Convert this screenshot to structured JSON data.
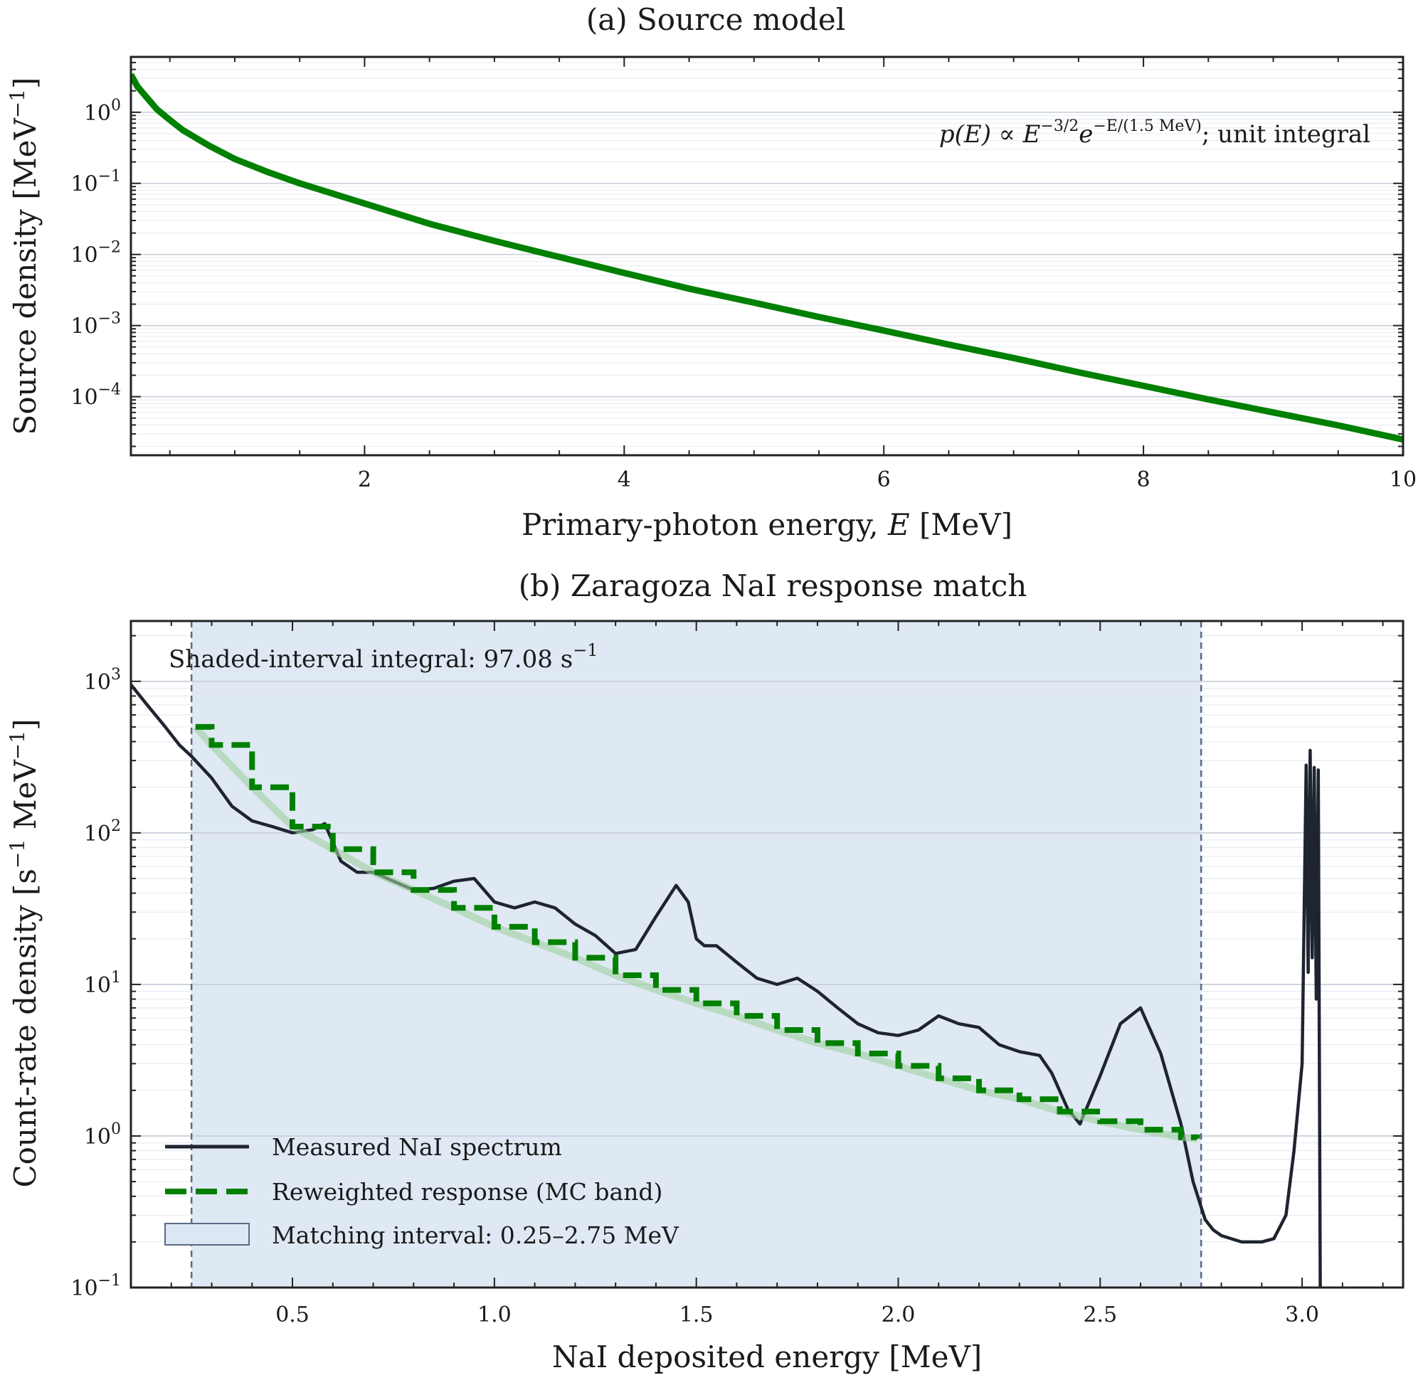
{
  "chart_data": [
    {
      "type": "line",
      "title": "(a) Source model",
      "xlabel_text": "Primary-photon energy, ",
      "xlabel_var": "E",
      "xlabel_unit": " [MeV]",
      "ylabel_base": "Source density [MeV",
      "ylabel_sup": "−1",
      "ylabel_close": "]",
      "yscale": "log",
      "xlim": [
        0.2,
        10
      ],
      "ylim": [
        1.5e-05,
        6
      ],
      "xticks": [
        2,
        4,
        6,
        8,
        10
      ],
      "yticks": [
        {
          "base": "10",
          "exp": "0"
        },
        {
          "base": "10",
          "exp": "−1"
        },
        {
          "base": "10",
          "exp": "−2"
        },
        {
          "base": "10",
          "exp": "−3"
        },
        {
          "base": "10",
          "exp": "−4"
        }
      ],
      "ytick_values": [
        1,
        0.1,
        0.01,
        0.001,
        0.0001
      ],
      "annotation": {
        "lhs": "p(E) ∝ E",
        "exp1": "−3/2",
        "mid": "e",
        "exp2": "−E/(1.5 MeV)",
        "rhs": "; unit integral"
      },
      "series": [
        {
          "color": "#008000",
          "x": [
            0.2,
            0.25,
            0.3,
            0.4,
            0.5,
            0.6,
            0.8,
            1.0,
            1.25,
            1.5,
            2.0,
            2.5,
            3.0,
            3.5,
            4.0,
            4.5,
            5.0,
            5.5,
            6.0,
            6.5,
            7.0,
            7.5,
            8.0,
            8.5,
            9.0,
            9.5,
            10.0
          ],
          "y": [
            3.4,
            2.3,
            1.8,
            1.1,
            0.78,
            0.56,
            0.34,
            0.22,
            0.145,
            0.1,
            0.052,
            0.027,
            0.0155,
            0.0092,
            0.0055,
            0.0033,
            0.0021,
            0.00132,
            0.00085,
            0.00054,
            0.00035,
            0.00022,
            0.000142,
            9.15e-05,
            6e-05,
            3.95e-05,
            2.5e-05
          ]
        }
      ]
    },
    {
      "type": "line",
      "title": "(b) Zaragoza NaI response match",
      "xlabel": "NaI deposited energy [MeV]",
      "ylabel_base": "Count-rate density [s",
      "ylabel_sup1": "−1",
      "ylabel_mid": " MeV",
      "ylabel_sup2": "−1",
      "ylabel_close": "]",
      "yscale": "log",
      "xlim": [
        0.1,
        3.25
      ],
      "ylim": [
        0.1,
        2500
      ],
      "xticks": [
        "0.5",
        "1.0",
        "1.5",
        "2.0",
        "2.5",
        "3.0"
      ],
      "xtick_values": [
        0.5,
        1.0,
        1.5,
        2.0,
        2.5,
        3.0
      ],
      "yticks": [
        {
          "base": "10",
          "exp": "3"
        },
        {
          "base": "10",
          "exp": "2"
        },
        {
          "base": "10",
          "exp": "1"
        },
        {
          "base": "10",
          "exp": "0"
        },
        {
          "base": "10",
          "exp": "−1"
        }
      ],
      "ytick_values": [
        1000,
        100,
        10,
        1,
        0.1
      ],
      "annotation": {
        "text": "Shaded-interval integral: 97.08 s",
        "sup": "−1"
      },
      "shaded_interval": [
        0.25,
        2.75
      ],
      "shade_color": "#dbe7f3",
      "legend": {
        "position": "lower-left",
        "entries": [
          {
            "label": "Measured NaI spectrum",
            "style": "solid",
            "color": "#1f2430"
          },
          {
            "label": "Reweighted response (MC band)",
            "style": "dashed",
            "color": "#008000"
          },
          {
            "label": "Matching interval: 0.25–2.75 MeV",
            "style": "patch",
            "color": "#dbe7f3"
          }
        ]
      },
      "series": [
        {
          "label": "Measured NaI spectrum",
          "color": "#1f2430",
          "x": [
            0.1,
            0.14,
            0.18,
            0.22,
            0.25,
            0.3,
            0.35,
            0.4,
            0.45,
            0.5,
            0.55,
            0.58,
            0.62,
            0.66,
            0.7,
            0.75,
            0.8,
            0.85,
            0.9,
            0.95,
            1.0,
            1.05,
            1.1,
            1.15,
            1.2,
            1.25,
            1.3,
            1.35,
            1.4,
            1.45,
            1.48,
            1.5,
            1.52,
            1.55,
            1.6,
            1.65,
            1.7,
            1.75,
            1.8,
            1.85,
            1.9,
            1.95,
            2.0,
            2.05,
            2.1,
            2.15,
            2.2,
            2.25,
            2.3,
            2.35,
            2.38,
            2.42,
            2.45,
            2.5,
            2.55,
            2.6,
            2.65,
            2.7,
            2.73,
            2.76,
            2.78,
            2.8,
            2.85,
            2.9,
            2.93,
            2.96,
            2.98,
            3.0,
            3.01,
            3.015,
            3.02,
            3.025,
            3.03,
            3.035,
            3.04,
            3.045,
            3.046
          ],
          "y": [
            950,
            700,
            520,
            380,
            320,
            230,
            150,
            120,
            110,
            100,
            105,
            115,
            65,
            55,
            55,
            48,
            42,
            43,
            48,
            50,
            35,
            32,
            35,
            32,
            25,
            21,
            16,
            17,
            28,
            45,
            35,
            20,
            18,
            18,
            14,
            11,
            10,
            11,
            9,
            7,
            5.5,
            4.8,
            4.6,
            5,
            6.2,
            5.5,
            5.2,
            4.0,
            3.6,
            3.4,
            2.6,
            1.5,
            1.2,
            2.5,
            5.5,
            7.0,
            3.5,
            1.2,
            0.5,
            0.28,
            0.24,
            0.22,
            0.2,
            0.2,
            0.21,
            0.3,
            0.8,
            3.0,
            280,
            12,
            350,
            15,
            270,
            8,
            260,
            0.1,
            0.1
          ]
        },
        {
          "label": "Reweighted response (MC band)",
          "color": "#008000",
          "x": [
            0.26,
            0.3,
            0.4,
            0.5,
            0.6,
            0.7,
            0.8,
            0.9,
            1.0,
            1.1,
            1.2,
            1.3,
            1.4,
            1.5,
            1.6,
            1.7,
            1.8,
            1.9,
            2.0,
            2.1,
            2.2,
            2.3,
            2.4,
            2.5,
            2.6,
            2.7,
            2.74
          ],
          "y": [
            500,
            380,
            200,
            110,
            78,
            55,
            42,
            32,
            24,
            19,
            15,
            11.5,
            9.2,
            7.5,
            6.2,
            5.0,
            4.1,
            3.5,
            2.9,
            2.4,
            2.0,
            1.75,
            1.45,
            1.25,
            1.1,
            0.98,
            0.96
          ]
        }
      ]
    }
  ]
}
